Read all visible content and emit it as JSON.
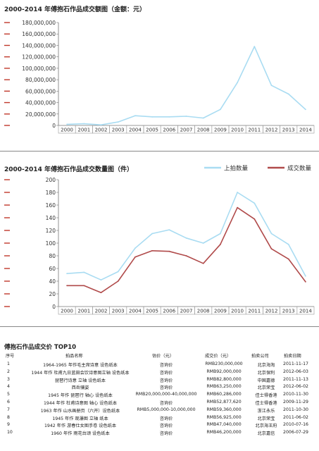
{
  "chart_data": [
    {
      "type": "line",
      "title": "2000-2014 年傅抱石作品成交额图（金额：元）",
      "categories": [
        "2000",
        "2001",
        "2002",
        "2003",
        "2004",
        "2005",
        "2006",
        "2007",
        "2008",
        "2009",
        "2010",
        "2011",
        "2012",
        "2013",
        "2014"
      ],
      "y_tick_labels": [
        "0",
        "20,000,000",
        "40,000,000",
        "60,000,000",
        "80,000,000",
        "100,000,000",
        "120,000,000",
        "140,000,000",
        "160,000,000",
        "180,000,000"
      ],
      "ylim": [
        0,
        180000000
      ],
      "series": [
        {
          "values": [
            2000000,
            3000000,
            1000000,
            6000000,
            17000000,
            15000000,
            15000000,
            16000000,
            13000000,
            28000000,
            75000000,
            138000000,
            70000000,
            55000000,
            28000000
          ],
          "color": "#a9dcf2"
        }
      ]
    },
    {
      "type": "line",
      "title": "2000-2014 年傅抱石作品成交数量图（件）",
      "categories": [
        "2000",
        "2001",
        "2002",
        "2003",
        "2004",
        "2005",
        "2006",
        "2007",
        "2008",
        "2009",
        "2010",
        "2011",
        "2012",
        "2013",
        "2014"
      ],
      "y_tick_labels": [
        "0",
        "20",
        "40",
        "60",
        "80",
        "100",
        "120",
        "140",
        "160",
        "180",
        "200"
      ],
      "ylim": [
        0,
        200
      ],
      "legend_placement": "top-right",
      "series": [
        {
          "name": "上拍数量",
          "values": [
            52,
            54,
            42,
            55,
            92,
            115,
            121,
            108,
            100,
            115,
            180,
            163,
            115,
            98,
            48
          ],
          "color": "#a9dcf2"
        },
        {
          "name": "成交数量",
          "values": [
            33,
            33,
            22,
            40,
            78,
            88,
            87,
            80,
            68,
            98,
            156,
            138,
            91,
            75,
            39
          ],
          "color": "#b04a4a"
        }
      ]
    }
  ],
  "table": {
    "title": "傅抱石作品成交价 TOP10",
    "headers": [
      "序号",
      "拍品名称",
      "估价（元）",
      "成交价（元）",
      "拍卖公司",
      "拍卖日期"
    ],
    "rows": [
      [
        "1",
        "1964-1965 年作毛主席诗意 设色纸本",
        "咨询价",
        "RMB230,000,000",
        "北京海淘",
        "2011-11-17"
      ],
      [
        "2",
        "1944 年作 杜甫九日蓝田会饮诗意图立轴 设色纸本",
        "咨询价",
        "RMB92,000,000",
        "北京保利",
        "2012-06-03"
      ],
      [
        "3",
        "琵琶行诗意 立轴 设色纸本",
        "咨询价",
        "RMB82,800,000",
        "中国嘉德",
        "2011-11-13"
      ],
      [
        "4",
        "西岳骧姿",
        "咨询价",
        "RMB63,250,000",
        "北京荣宝",
        "2012-06-02"
      ],
      [
        "5",
        "1945 年作 琵琶行 轴心 设色纸本",
        "RMB20,000,000-40,000,000",
        "RMB60,286,000",
        "佳士得香港",
        "2010-11-30"
      ],
      [
        "6",
        "1944 年作 杜甫诗意图 轴心 设色纸本",
        "咨询价",
        "RMB52,877,620",
        "佳士得香港",
        "2009-11-29"
      ],
      [
        "7",
        "1963 年作 山水画册页（六开）设色纸本",
        "RMB5,000,000-10,000,000",
        "RMB59,360,000",
        "浙江永乐",
        "2011-10-30"
      ],
      [
        "8",
        "1945 年作 观瀑图 立轴 纸本",
        "咨询价",
        "RMB56,925,000",
        "北京荣宝",
        "2011-06-02"
      ],
      [
        "9",
        "1942 年作 游春仕女图手卷 设色纸本",
        "咨询价",
        "RMB47,040,000",
        "北京海王府",
        "2010-07-16"
      ],
      [
        "10",
        "1960 年作 雨花台颂 设色纸本",
        "咨询价",
        "RMB46,200,000",
        "北京嘉信",
        "2006-07-29"
      ]
    ]
  },
  "colors": {
    "marker": "#c0392b",
    "axis": "#777777",
    "grid": "#999999"
  }
}
